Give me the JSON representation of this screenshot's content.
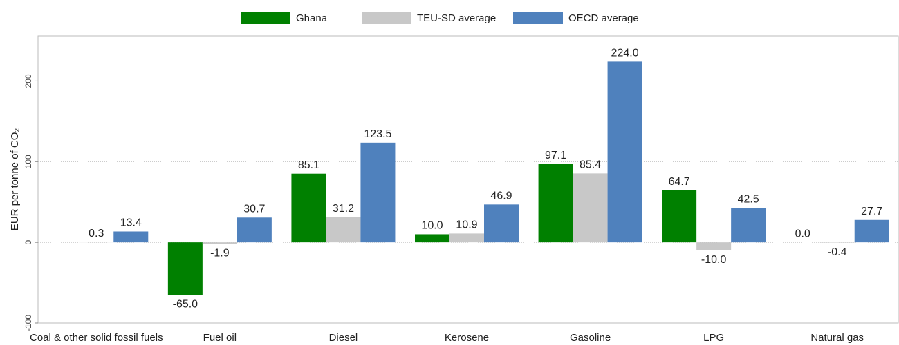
{
  "chart_data": {
    "type": "bar",
    "y_label": "EUR per tonne of CO₂",
    "categories": [
      "Coal & other solid fossil fuels",
      "Fuel oil",
      "Diesel",
      "Kerosene",
      "Gasoline",
      "LPG",
      "Natural gas"
    ],
    "series": [
      {
        "name": "Ghana",
        "color": "#008000",
        "values": [
          null,
          -65.0,
          85.1,
          10.0,
          97.1,
          64.7,
          0.0
        ],
        "value_labels": [
          null,
          "-65.0",
          "85.1",
          "10.0",
          "97.1",
          "64.7",
          "0.0"
        ]
      },
      {
        "name": "TEU-SD average",
        "color": "#c8c8c8",
        "values": [
          0.3,
          -1.9,
          31.2,
          10.9,
          85.4,
          -10.0,
          -0.4
        ],
        "value_labels": [
          "0.3",
          "-1.9",
          "31.2",
          "10.9",
          "85.4",
          "-10.0",
          "-0.4"
        ]
      },
      {
        "name": "OECD average",
        "color": "#4f81bd",
        "values": [
          13.4,
          30.7,
          123.5,
          46.9,
          224.0,
          42.5,
          27.7
        ],
        "value_labels": [
          "13.4",
          "30.7",
          "123.5",
          "46.9",
          "224.0",
          "42.5",
          "27.7"
        ]
      }
    ],
    "ylim": [
      -100,
      256
    ],
    "yticks": [
      -100,
      0,
      100,
      200
    ],
    "grid": true,
    "legend": "top"
  }
}
